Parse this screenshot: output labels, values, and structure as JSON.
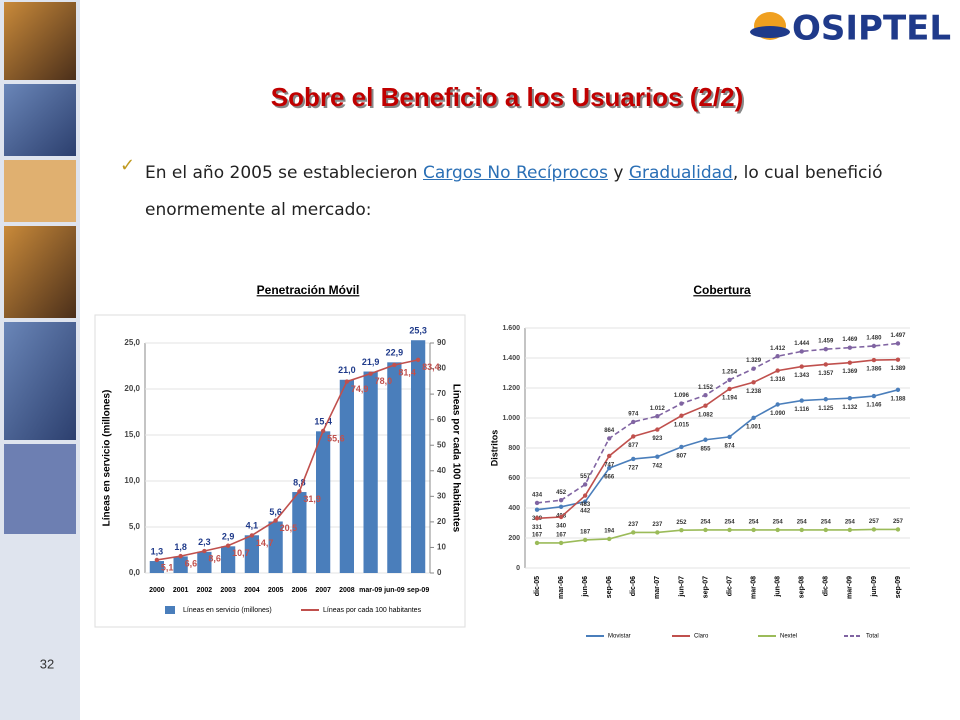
{
  "slide": {
    "logo": "OSIPTEL",
    "title": "Sobre el Beneficio a los Usuarios (2/2)",
    "bullet": [
      "En el año 2005 se establecieron ",
      "Cargos No Recíprocos",
      " y ",
      "Gradualidad",
      ", lo cual benefició enormemente al mercado:"
    ],
    "page": "32"
  },
  "chart_data": [
    {
      "type": "bar",
      "title": "Penetración Móvil",
      "categories": [
        "2000",
        "2001",
        "2002",
        "2003",
        "2004",
        "2005",
        "2006",
        "2007",
        "2008",
        "mar-09",
        "jun-09",
        "sep-09"
      ],
      "series": [
        {
          "name": "Líneas en servicio (millones)",
          "color": "#4a7ebb",
          "values": [
            1.3,
            1.8,
            2.3,
            2.9,
            4.1,
            5.6,
            8.8,
            15.4,
            21.0,
            21.9,
            22.9,
            25.3
          ],
          "value_labels": [
            "1,3",
            "1,8",
            "2,3",
            "2,9",
            "4,1",
            "5,6",
            "8,8",
            "15,4",
            "21,0",
            "21,9",
            "22,9",
            "25,3"
          ]
        },
        {
          "name": "Líneas por cada 100 habitantes",
          "color": "#c0504d",
          "axis": "y2",
          "values": [
            5.1,
            6.6,
            8.6,
            10.7,
            14.7,
            20.5,
            31.9,
            55.6,
            74.9,
            78.0,
            81.4,
            83.4
          ],
          "value_labels": [
            "5,1",
            "6,6",
            "8,6",
            "10,7",
            "14,7",
            "20,5",
            "31,9",
            "55,6",
            "74,9",
            "78,0",
            "81,4",
            "83,4"
          ]
        }
      ],
      "ylabel": "Líneas en servicio (millones)",
      "y2label": "Líneas por cada 100 habitantes",
      "ylim": [
        0,
        25
      ],
      "yticks": [
        {
          "value": 0,
          "label": "0,0"
        },
        {
          "value": 5,
          "label": "5,0"
        },
        {
          "value": 10,
          "label": "10,0"
        },
        {
          "value": 15,
          "label": "15,0"
        },
        {
          "value": 20,
          "label": "20,0"
        },
        {
          "value": 25,
          "label": "25,0"
        }
      ],
      "y2lim": [
        0,
        90
      ],
      "y2ticks": [
        0,
        10,
        20,
        30,
        40,
        50,
        60,
        70,
        80,
        90
      ],
      "grid": true
    },
    {
      "type": "line",
      "title": "Cobertura",
      "ylabel": "Distritos",
      "categories": [
        "dic-05",
        "mar-06",
        "jun-06",
        "sep-06",
        "dic-06",
        "mar-07",
        "jun-07",
        "sep-07",
        "dic-07",
        "mar-08",
        "jun-08",
        "sep-08",
        "dic-08",
        "mar-09",
        "jun-09",
        "sep-09"
      ],
      "series": [
        {
          "name": "Movistar",
          "color": "#4a7ebb",
          "values": [
            389,
            408,
            442,
            666,
            727,
            742,
            807,
            855,
            874,
            1001,
            1090,
            1116,
            1125,
            1132,
            1146,
            1188
          ],
          "value_labels": [
            "389",
            "408",
            "442",
            "666",
            "727",
            "742",
            "807",
            "855",
            "874",
            "1.001",
            "1.090",
            "1.116",
            "1.125",
            "1.132",
            "1.146",
            "1.188"
          ]
        },
        {
          "name": "Claro",
          "color": "#c0504d",
          "values": [
            331,
            340,
            483,
            747,
            877,
            923,
            1015,
            1082,
            1194,
            1238,
            1316,
            1343,
            1357,
            1369,
            1386,
            1389
          ],
          "value_labels": [
            "331",
            "340",
            "483",
            "747",
            "877",
            "923",
            "1.015",
            "1.082",
            "1.194",
            "1.238",
            "1.316",
            "1.343",
            "1.357",
            "1.369",
            "1.386",
            "1.389"
          ]
        },
        {
          "name": "Nextel",
          "color": "#9bbb59",
          "values": [
            167,
            167,
            187,
            194,
            237,
            237,
            252,
            254,
            254,
            254,
            254,
            254,
            254,
            254,
            257,
            257
          ],
          "value_labels": [
            "167",
            "167",
            "187",
            "194",
            "237",
            "237",
            "252",
            "254",
            "254",
            "254",
            "254",
            "254",
            "254",
            "254",
            "257",
            "257"
          ]
        },
        {
          "name": "Total",
          "color": "#8064a2",
          "line_style": "dashed",
          "values": [
            434,
            452,
            557,
            864,
            974,
            1012,
            1096,
            1152,
            1254,
            1329,
            1412,
            1444,
            1459,
            1469,
            1480,
            1497
          ],
          "value_labels": [
            "434",
            "452",
            "557",
            "864",
            "974",
            "1.012",
            "1.096",
            "1.152",
            "1.254",
            "1.329",
            "1.412",
            "1.444",
            "1.459",
            "1.469",
            "1.480",
            "1.497"
          ]
        }
      ],
      "ylim": [
        0,
        1600
      ],
      "yticks": [
        0,
        200,
        400,
        600,
        800,
        {
          "value": 1000,
          "label": "1.000"
        },
        {
          "value": 1200,
          "label": "1.200"
        },
        {
          "value": 1400,
          "label": "1.400"
        },
        {
          "value": 1600,
          "label": "1.600"
        }
      ],
      "grid": true
    }
  ]
}
